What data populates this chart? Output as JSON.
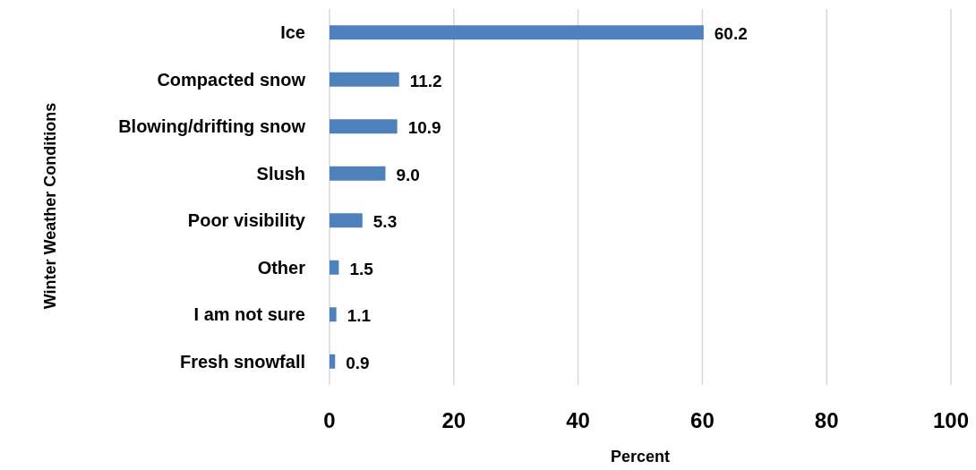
{
  "chart_data": {
    "type": "bar",
    "orientation": "horizontal",
    "xlabel": "Percent",
    "ylabel": "Winter Weather Conditions",
    "categories": [
      "Ice",
      "Compacted snow",
      "Blowing/drifting snow",
      "Slush",
      "Poor visibility",
      "Other",
      "I am not sure",
      "Fresh snowfall"
    ],
    "values": [
      60.2,
      11.2,
      10.9,
      9.0,
      5.3,
      1.5,
      1.1,
      0.9
    ],
    "value_labels": [
      "60.2",
      "11.2",
      "10.9",
      "9.0",
      "5.3",
      "1.5",
      "1.1",
      "0.9"
    ],
    "color": "#4f81bd",
    "xlim": [
      0,
      100
    ],
    "xticks": [
      0,
      20,
      40,
      60,
      80,
      100
    ],
    "grid": "x"
  }
}
